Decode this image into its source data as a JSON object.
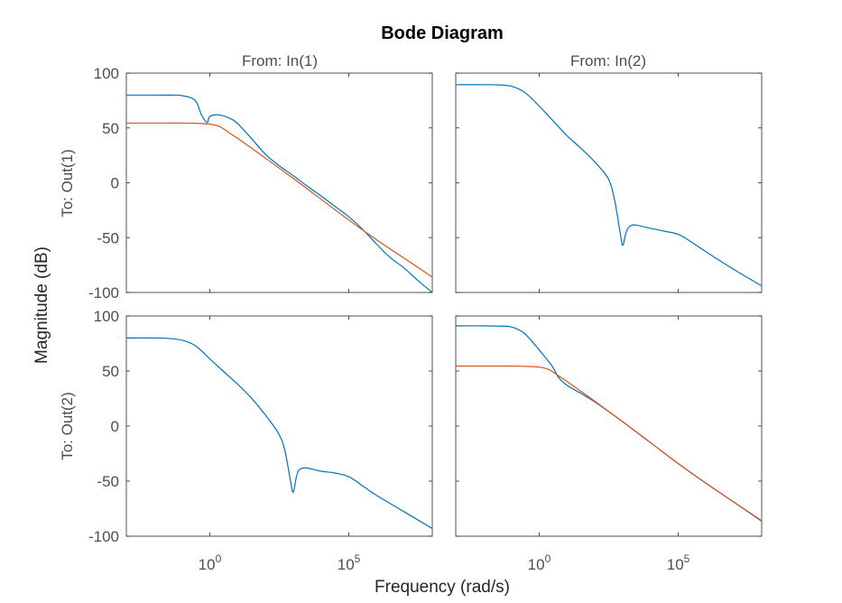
{
  "chart_data": {
    "type": "line",
    "title": "Bode Diagram",
    "xlabel": "Frequency  (rad/s)",
    "ylabel": "Magnitude (dB)",
    "xscale": "log",
    "xlim": [
      0.001,
      100000000
    ],
    "ylim": [
      -100,
      100
    ],
    "xticks": [
      {
        "value": 1,
        "base": "10",
        "exp": "0"
      },
      {
        "value": 100000,
        "base": "10",
        "exp": "5"
      }
    ],
    "yticks": [
      -100,
      -50,
      0,
      50,
      100
    ],
    "column_titles": [
      "From: In(1)",
      "From: In(2)"
    ],
    "row_titles": [
      "To: Out(1)",
      "To: Out(2)"
    ],
    "colors": {
      "series_1": "#0072bd",
      "series_2": "#d95319"
    },
    "grid": false,
    "subplots": [
      {
        "row": 1,
        "col": 1,
        "series": [
          {
            "color": "#0072bd",
            "x": [
              0.001,
              0.01,
              0.03,
              0.1,
              0.3,
              0.5,
              0.8,
              1,
              2,
              5,
              10,
              30,
              100,
              300,
              1000,
              3000,
              10000,
              30000,
              100000,
              300000,
              1000000,
              3000000,
              10000000,
              30000000,
              100000000
            ],
            "y": [
              80,
              80,
              79.9,
              79.5,
              75,
              62,
              55,
              60.5,
              62,
              59,
              54,
              41,
              26,
              16,
              6.5,
              -2.5,
              -12,
              -21,
              -31,
              -42,
              -56,
              -68,
              -78,
              -89,
              -100
            ]
          },
          {
            "color": "#d95319",
            "x": [
              0.001,
              0.01,
              0.03,
              0.1,
              0.3,
              1,
              2,
              3,
              5,
              10,
              30,
              100,
              1000,
              10000,
              100000,
              1000000,
              10000000,
              100000000
            ],
            "y": [
              54.5,
              54.5,
              54.5,
              54.5,
              54.3,
              53.5,
              51.8,
              49.5,
              45.5,
              40.5,
              32,
              22.5,
              4,
              -15,
              -34,
              -52,
              -69,
              -86
            ]
          }
        ]
      },
      {
        "row": 1,
        "col": 2,
        "series": [
          {
            "color": "#0072bd",
            "x": [
              0.001,
              0.01,
              0.03,
              0.1,
              0.3,
              1,
              3,
              10,
              30,
              100,
              300,
              500,
              800,
              1000,
              1300,
              1600,
              2000,
              3000,
              10000,
              30000,
              100000,
              300000,
              1000000,
              10000000,
              100000000
            ],
            "y": [
              89.5,
              89.5,
              89.3,
              88,
              82.5,
              70,
              57,
              43,
              32,
              19,
              4,
              -14,
              -44,
              -57,
              -46,
              -41,
              -39,
              -38.5,
              -41.5,
              -44,
              -47,
              -54,
              -63,
              -79,
              -94
            ]
          }
        ]
      },
      {
        "row": 2,
        "col": 1,
        "series": [
          {
            "color": "#0072bd",
            "x": [
              0.001,
              0.01,
              0.03,
              0.1,
              0.3,
              1,
              3,
              10,
              30,
              100,
              300,
              500,
              800,
              1000,
              1300,
              1600,
              2000,
              3000,
              10000,
              30000,
              100000,
              300000,
              1000000,
              10000000,
              100000000
            ],
            "y": [
              80,
              80,
              79.7,
              78,
              73,
              61,
              50,
              38,
              26,
              10,
              -7,
              -22,
              -50,
              -60,
              -46,
              -40,
              -38.5,
              -38,
              -41,
              -42.5,
              -46,
              -54,
              -63,
              -78,
              -93
            ]
          }
        ]
      },
      {
        "row": 2,
        "col": 2,
        "series": [
          {
            "color": "#0072bd",
            "x": [
              0.001,
              0.01,
              0.03,
              0.1,
              0.3,
              1,
              3,
              5,
              10,
              30,
              100,
              1000,
              10000,
              100000,
              1000000,
              10000000,
              100000000
            ],
            "y": [
              91,
              91,
              90.8,
              90,
              84,
              69,
              54,
              44,
              37,
              30,
              22,
              4,
              -15,
              -34,
              -52,
              -69,
              -86.5
            ]
          },
          {
            "color": "#d95319",
            "x": [
              0.001,
              0.01,
              0.03,
              0.1,
              0.3,
              1,
              2,
              3,
              5,
              10,
              30,
              100,
              1000,
              10000,
              100000,
              1000000,
              10000000,
              100000000
            ],
            "y": [
              54.5,
              54.5,
              54.5,
              54.5,
              54.3,
              53.5,
              51.8,
              49.5,
              45.5,
              40.5,
              32,
              22.5,
              4,
              -15,
              -34,
              -52,
              -69,
              -86
            ]
          }
        ]
      }
    ]
  }
}
